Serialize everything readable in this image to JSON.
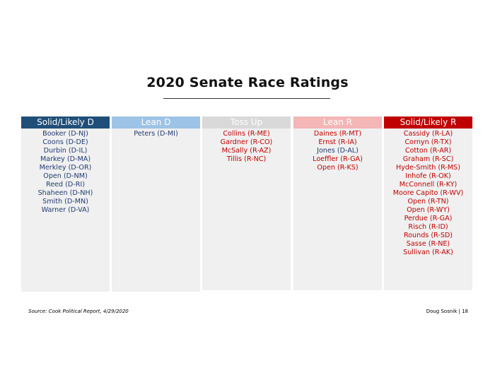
{
  "title": "2020 Senate Race Ratings",
  "colors": {
    "dem": "#1f3b73",
    "rep": "#c00000",
    "header_solid_d": "#1f4e79",
    "header_lean_d": "#9dc3e6",
    "header_tossup": "#d9d9d9",
    "header_lean_r": "#f4b6b6",
    "header_solid_r": "#c00000"
  },
  "columns": [
    {
      "header": "Solid/Likely D",
      "items": [
        "Booker (D-NJ)",
        "Coons (D-DE)",
        "Durbin (D-IL)",
        "Markey (D-MA)",
        "Merkley (D-OR)",
        "Open (D-NM)",
        "Reed (D-RI)",
        "Shaheen (D-NH)",
        "Smith (D-MN)",
        "Warner (D-VA)"
      ]
    },
    {
      "header": "Lean D",
      "items": [
        "Peters (D-MI)"
      ]
    },
    {
      "header": "Toss Up",
      "items": [
        "Collins (R-ME)",
        "Gardner (R-CO)",
        "McSally (R-AZ)",
        "Tillis (R-NC)"
      ]
    },
    {
      "header": "Lean R",
      "items": [
        "Daines (R-MT)",
        "Ernst (R-IA)",
        "Jones (D-AL)",
        "Loeffler (R-GA)",
        "Open (R-KS)"
      ]
    },
    {
      "header": "Solid/Likely R",
      "items": [
        "Cassidy (R-LA)",
        "Cornyn (R-TX)",
        "Cotton (R-AR)",
        "Graham (R-SC)",
        "Hyde-Smith (R-MS)",
        "Inhofe (R-OK)",
        "McConnell (R-KY)",
        "Moore Capito (R-WV)",
        "Open (R-TN)",
        "Open (R-WY)",
        "Perdue (R-GA)",
        "Risch (R-ID)",
        "Rounds (R-SD)",
        "Sasse (R-NE)",
        "Sullivan (R-AK)"
      ]
    }
  ],
  "footer": {
    "source": "Source: Cook Political Report, 4/29/2020",
    "credit": "Doug Sosnik | 18"
  }
}
